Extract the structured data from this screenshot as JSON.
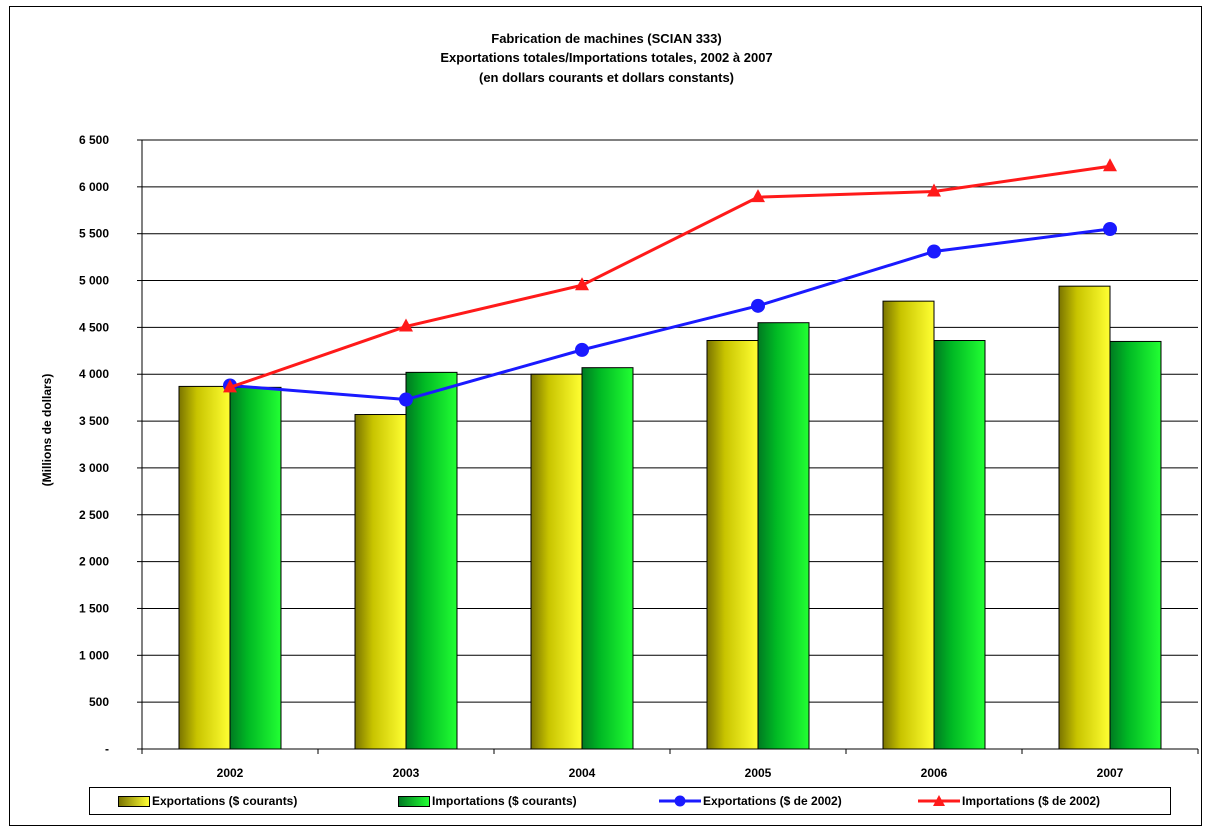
{
  "chart_data": {
    "type": "bar",
    "title": [
      "Fabrication de machines (SCIAN 333)",
      "Exportations totales/Importations totales, 2002 à 2007",
      "(en dollars courants et dollars constants)"
    ],
    "ylabel": "(Millions de dollars)",
    "xlabel": "",
    "categories": [
      "2002",
      "2003",
      "2004",
      "2005",
      "2006",
      "2007"
    ],
    "ylim": [
      0,
      6500
    ],
    "yticks": [
      0,
      500,
      1000,
      1500,
      2000,
      2500,
      3000,
      3500,
      4000,
      4500,
      5000,
      5500,
      6000,
      6500
    ],
    "ytick_labels": [
      "-",
      "500",
      "1 000",
      "1 500",
      "2 000",
      "2 500",
      "3 000",
      "3 500",
      "4 000",
      "4 500",
      "5 000",
      "5 500",
      "6 000",
      "6 500"
    ],
    "grid": true,
    "legend_position": "bottom",
    "series": [
      {
        "name": "Exportations ($ courants)",
        "type": "bar",
        "color": "#ffff00",
        "values": [
          3870,
          3570,
          4000,
          4360,
          4780,
          4940
        ]
      },
      {
        "name": "Importations ($ courants)",
        "type": "bar",
        "color": "#00ee22",
        "values": [
          3860,
          4020,
          4070,
          4550,
          4360,
          4350
        ]
      },
      {
        "name": "Exportations ($ de 2002)",
        "type": "line",
        "marker": "circle",
        "color": "#1a1aff",
        "values": [
          3880,
          3730,
          4260,
          4730,
          5310,
          5550
        ]
      },
      {
        "name": "Importations ($ de 2002)",
        "type": "line",
        "marker": "triangle",
        "color": "#ff1a1a",
        "values": [
          3860,
          4510,
          4950,
          5890,
          5950,
          6220
        ]
      }
    ]
  }
}
